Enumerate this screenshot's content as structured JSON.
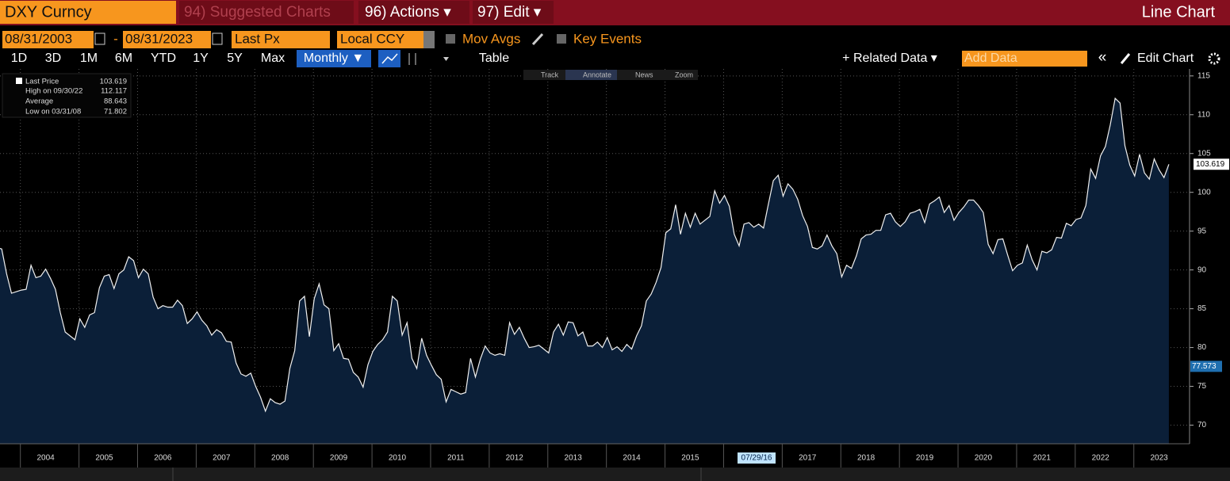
{
  "header": {
    "security": "DXY Curncy",
    "menu": [
      "94) Suggested Charts",
      "96) Actions ▾",
      "97) Edit ▾"
    ],
    "view": "Line Chart"
  },
  "controls": {
    "start_date": "08/31/2003",
    "date_separator": "-",
    "end_date": "08/31/2023",
    "field": "Last Px",
    "currency": "Local CCY",
    "options": [
      "Mov Avgs",
      "Key Events"
    ]
  },
  "tabs": {
    "periods": [
      "1D",
      "3D",
      "1M",
      "6M",
      "YTD",
      "1Y",
      "5Y",
      "Max"
    ],
    "frequency": "Monthly ▼",
    "table": "Table",
    "related": "+ Related Data ▾",
    "add_data": "Add Data",
    "back": "«",
    "edit": "Edit Chart"
  },
  "chart_tools": [
    "Track",
    "Annotate",
    "News",
    "Zoom"
  ],
  "chart_data": {
    "type": "area",
    "color": "#f0f0f0",
    "fill": "#0b1f38",
    "x_labels": [
      "2004",
      "2005",
      "2006",
      "2007",
      "2008",
      "2009",
      "2010",
      "2011",
      "2012",
      "2013",
      "2014",
      "2015",
      "2016",
      "2017",
      "2018",
      "2019",
      "2020",
      "2021",
      "2022",
      "2023"
    ],
    "values": [
      92.9,
      92.7,
      89.5,
      87.0,
      87.2,
      87.4,
      87.5,
      90.6,
      89.0,
      89.2,
      90.1,
      88.9,
      87.5,
      84.5,
      82.0,
      81.5,
      81.0,
      83.7,
      82.6,
      84.2,
      84.5,
      87.7,
      89.2,
      89.4,
      87.6,
      89.5,
      90.0,
      91.7,
      91.2,
      89.0,
      90.1,
      89.5,
      86.5,
      85.0,
      85.4,
      85.2,
      85.2,
      86.1,
      85.4,
      83.1,
      83.7,
      84.6,
      83.5,
      82.8,
      81.6,
      82.3,
      81.9,
      80.8,
      80.7,
      78.0,
      76.6,
      76.3,
      76.7,
      75.0,
      73.6,
      71.802,
      73.4,
      72.9,
      72.7,
      73.1,
      77.3,
      79.6,
      86.0,
      86.6,
      81.4,
      86.3,
      88.2,
      85.5,
      85.0,
      79.6,
      80.5,
      78.6,
      78.5,
      76.8,
      76.2,
      74.9,
      77.8,
      79.5,
      80.4,
      81.0,
      82.0,
      86.6,
      86.0,
      81.6,
      83.2,
      78.6,
      77.3,
      81.2,
      79.0,
      77.7,
      76.5,
      75.9,
      73.0,
      74.6,
      74.3,
      74.0,
      74.2,
      78.6,
      76.2,
      78.5,
      80.2,
      79.3,
      79.0,
      79.2,
      79.0,
      83.2,
      81.7,
      82.6,
      81.2,
      80.0,
      80.1,
      80.3,
      79.8,
      79.3,
      82.0,
      83.0,
      81.6,
      83.3,
      83.2,
      81.5,
      82.0,
      80.2,
      80.2,
      80.7,
      80.0,
      81.3,
      79.7,
      80.1,
      79.5,
      80.4,
      79.8,
      81.5,
      82.8,
      86.0,
      86.9,
      88.4,
      90.3,
      94.8,
      95.3,
      98.4,
      94.6,
      97.3,
      95.5,
      97.3,
      95.9,
      96.4,
      96.9,
      100.2,
      98.6,
      99.6,
      98.2,
      94.6,
      93.1,
      95.9,
      96.1,
      95.5,
      95.9,
      95.4,
      98.5,
      101.5,
      102.2,
      99.5,
      101.1,
      100.4,
      99.1,
      97.0,
      95.6,
      92.9,
      92.7,
      93.1,
      94.5,
      93.1,
      92.1,
      89.1,
      90.6,
      90.2,
      91.8,
      94.0,
      94.5,
      94.6,
      95.1,
      95.1,
      97.1,
      97.3,
      96.2,
      95.6,
      96.2,
      97.3,
      97.5,
      97.8,
      96.1,
      98.5,
      98.9,
      99.4,
      97.4,
      98.3,
      96.4,
      97.4,
      98.1,
      99.0,
      99.0,
      98.3,
      97.4,
      93.3,
      92.1,
      93.9,
      94.0,
      91.9,
      89.9,
      90.6,
      90.9,
      93.2,
      91.3,
      90.0,
      92.4,
      92.2,
      92.6,
      94.2,
      94.1,
      96.0,
      95.7,
      96.5,
      96.7,
      98.3,
      103.0,
      101.8,
      104.7,
      105.9,
      108.7,
      112.117,
      111.5,
      106.0,
      103.5,
      102.1,
      104.9,
      102.5,
      101.7,
      104.3,
      102.9,
      101.9,
      103.619
    ],
    "ylim": [
      67.6,
      115.9
    ],
    "yticks": [
      70,
      75,
      80,
      85,
      90,
      95,
      100,
      105,
      110,
      115
    ],
    "grid": true,
    "stats": {
      "last_label": "Last Price",
      "high_label": "High on 09/30/22",
      "average_label": "Average",
      "average": 88.643,
      "low_label": "Low on 03/31/08"
    },
    "crosshair": {
      "date": "07/29/16",
      "value": 77.573
    }
  }
}
